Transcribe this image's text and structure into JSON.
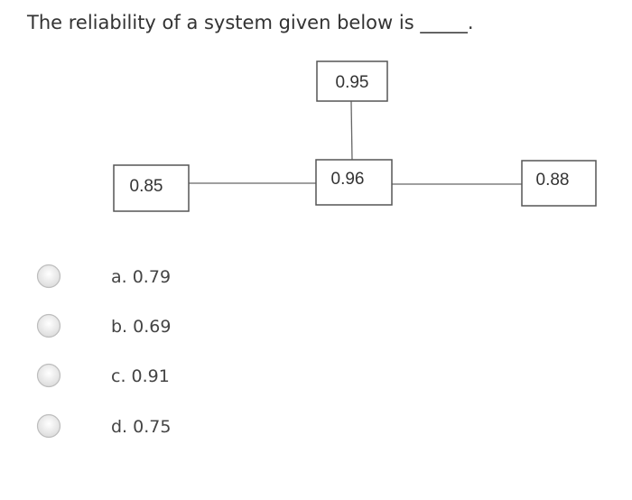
{
  "question": "The reliability of a system given below is _____.",
  "diagram": {
    "nodes": [
      {
        "label": "0.95"
      },
      {
        "label": "0.85"
      },
      {
        "label": "0.96"
      },
      {
        "label": "0.88"
      }
    ]
  },
  "options": [
    {
      "label": "a. 0.79"
    },
    {
      "label": "b. 0.69"
    },
    {
      "label": "c. 0.91"
    },
    {
      "label": "d. 0.75"
    }
  ]
}
